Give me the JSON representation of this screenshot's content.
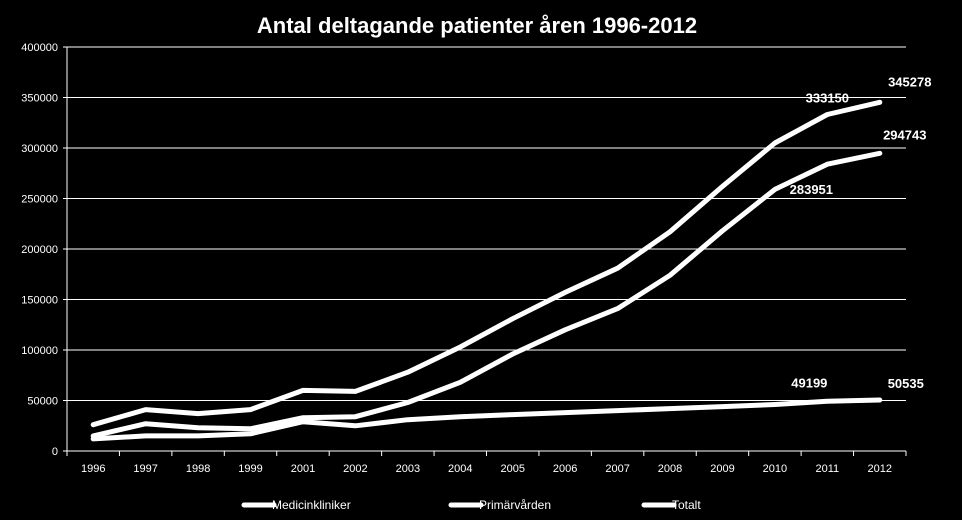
{
  "chart_data": {
    "type": "line",
    "title": "Antal deltagande patienter åren 1996-2012",
    "xlabel": "",
    "ylabel": "",
    "ylim": [
      0,
      400000
    ],
    "y_ticks": [
      "0",
      "50000",
      "100000",
      "150000",
      "200000",
      "250000",
      "300000",
      "350000",
      "400000"
    ],
    "y_tick_values": [
      0,
      50000,
      100000,
      150000,
      200000,
      250000,
      300000,
      350000,
      400000
    ],
    "categories": [
      "1996",
      "1997",
      "1998",
      "1999",
      "2001",
      "2002",
      "2003",
      "2004",
      "2005",
      "2006",
      "2007",
      "2008",
      "2009",
      "2010",
      "2011",
      "2012"
    ],
    "grid": true,
    "legend_position": "bottom",
    "line_color": "#ffffff",
    "background": "#000000",
    "series": [
      {
        "name": "Medicinkliniker",
        "values": [
          26000,
          41000,
          37000,
          41000,
          60000,
          59000,
          78000,
          103000,
          131000,
          157000,
          181000,
          217000,
          262000,
          305000,
          333150,
          345278
        ]
      },
      {
        "name": "Primärvården",
        "values": [
          15000,
          27000,
          23000,
          22000,
          33000,
          34000,
          48000,
          68000,
          96000,
          120000,
          141000,
          174000,
          218000,
          259000,
          283951,
          294743
        ]
      },
      {
        "name": "Totalt",
        "values": [
          12000,
          15000,
          15000,
          17000,
          29000,
          25000,
          31000,
          34000,
          36000,
          38000,
          40000,
          42000,
          44000,
          46000,
          49199,
          50535
        ]
      }
    ],
    "annotations": [
      {
        "text": "333150",
        "series": 0,
        "index": 14
      },
      {
        "text": "345278",
        "series": 0,
        "index": 15
      },
      {
        "text": "283951",
        "series": 1,
        "index": 14
      },
      {
        "text": "294743",
        "series": 1,
        "index": 15
      },
      {
        "text": "49199",
        "series": 2,
        "index": 14
      },
      {
        "text": "50535",
        "series": 2,
        "index": 15
      }
    ]
  }
}
